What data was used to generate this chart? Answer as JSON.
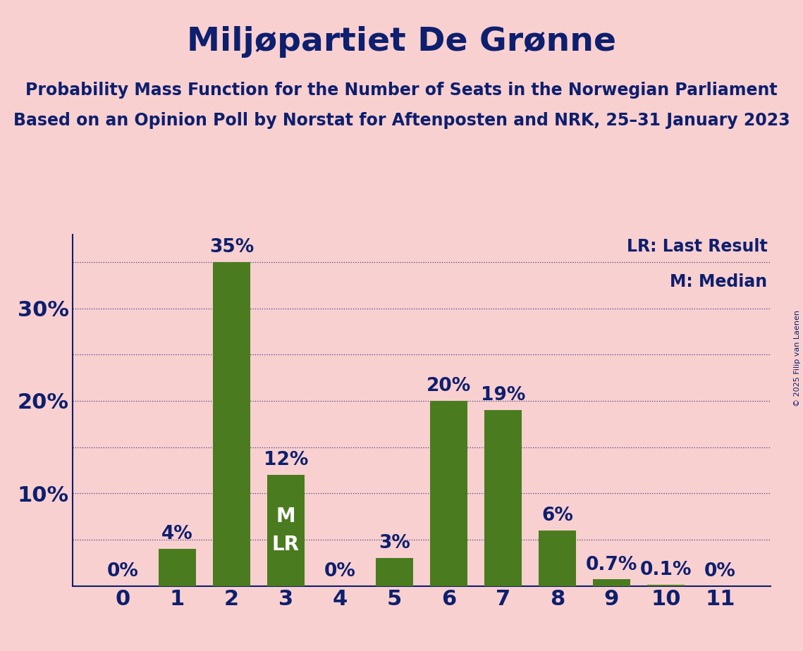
{
  "title": "Miljøpartiet De Grønne",
  "subtitle1": "Probability Mass Function for the Number of Seats in the Norwegian Parliament",
  "subtitle2": "Based on an Opinion Poll by Norstat for Aftenposten and NRK, 25–31 January 2023",
  "copyright": "© 2025 Filip van Laenen",
  "categories": [
    0,
    1,
    2,
    3,
    4,
    5,
    6,
    7,
    8,
    9,
    10,
    11
  ],
  "values": [
    0.0,
    4.0,
    35.0,
    12.0,
    0.0,
    3.0,
    20.0,
    19.0,
    6.0,
    0.7,
    0.1,
    0.0
  ],
  "bar_color": "#4a7c1f",
  "background_color": "#f9d0d0",
  "text_color": "#0d1f6e",
  "grid_color": "#0d1f6e",
  "bar_labels": [
    "0%",
    "4%",
    "35%",
    "12%",
    "0%",
    "3%",
    "20%",
    "19%",
    "6%",
    "0.7%",
    "0.1%",
    "0%"
  ],
  "median_seat": 3,
  "lr_seat": 3,
  "median_label": "M",
  "lr_label": "LR",
  "legend_lr": "LR: Last Result",
  "legend_m": "M: Median",
  "ylim": [
    0,
    38
  ],
  "title_fontsize": 34,
  "subtitle_fontsize": 17,
  "tick_fontsize": 22,
  "bar_label_fontsize": 19,
  "legend_fontsize": 17,
  "inside_label_fontsize": 20
}
